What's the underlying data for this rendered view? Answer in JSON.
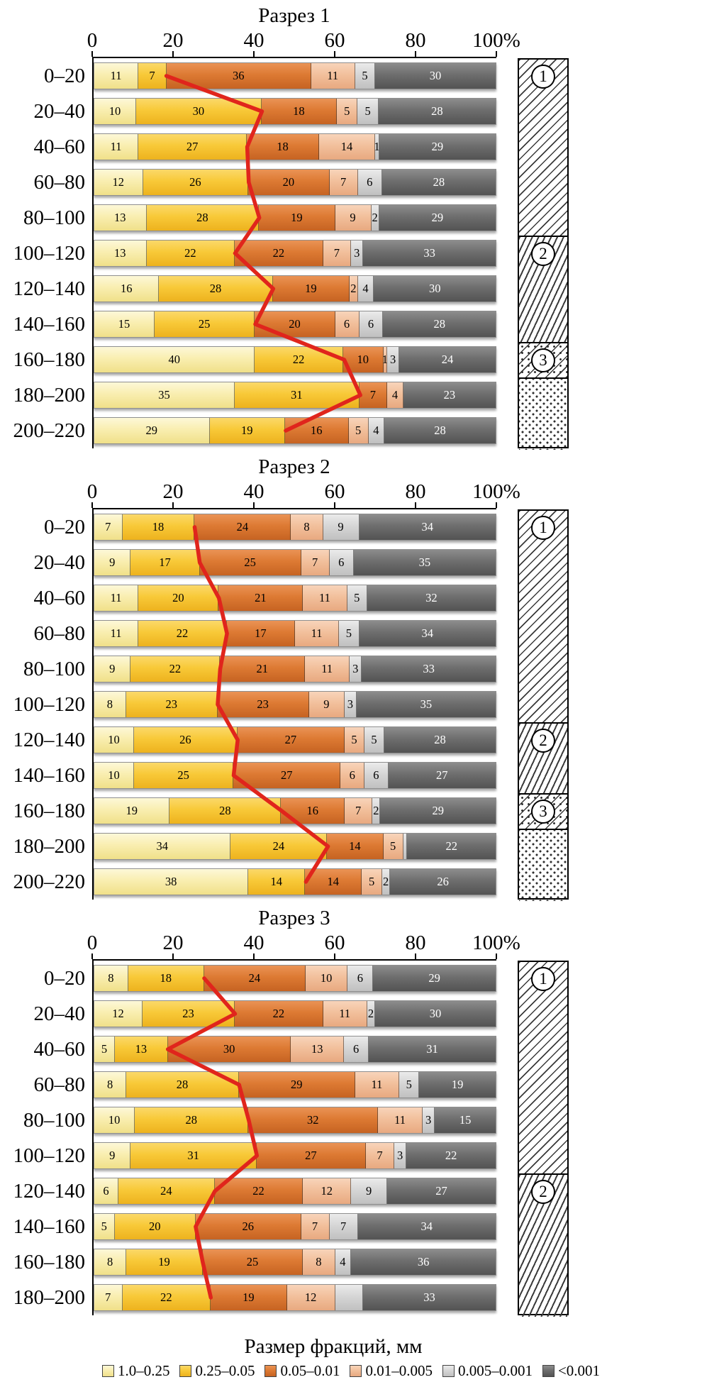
{
  "colors": {
    "fractions_base": [
      "#F9EEB0",
      "#F8C938",
      "#DD7A33",
      "#F2C09C",
      "#D6D6D6",
      "#6E6E6E"
    ],
    "line": "#E0251C"
  },
  "legend": {
    "title": "Размер фракций, мм",
    "items": [
      {
        "label": "1.0–0.25"
      },
      {
        "label": "0.25–0.05"
      },
      {
        "label": "0.05–0.01"
      },
      {
        "label": "0.01–0.005"
      },
      {
        "label": "0.005–0.001"
      },
      {
        "label": "<0.001"
      }
    ]
  },
  "chart_data": [
    {
      "type": "bar",
      "subtype": "horizontal-stacked",
      "title": "Разрез 1",
      "x_ticks": [
        "0",
        "20",
        "40",
        "60",
        "80",
        "100%"
      ],
      "x_range": [
        0,
        100
      ],
      "series_names": [
        "1.0–0.25",
        "0.25–0.05",
        "0.05–0.01",
        "0.01–0.005",
        "0.005–0.001",
        "<0.001"
      ],
      "rows": [
        {
          "depth": "0–20",
          "values": [
            11,
            7,
            36,
            11,
            5,
            30
          ],
          "labels": [
            "11",
            "7",
            "36",
            "11",
            "5",
            "30"
          ]
        },
        {
          "depth": "20–40",
          "values": [
            10,
            30,
            18,
            5,
            5,
            28
          ],
          "labels": [
            "10",
            "30",
            "18",
            "5",
            "5",
            "28"
          ]
        },
        {
          "depth": "40–60",
          "values": [
            11,
            27,
            18,
            14,
            1,
            29
          ],
          "labels": [
            "11",
            "27",
            "18",
            "14",
            "1",
            "29"
          ]
        },
        {
          "depth": "60–80",
          "values": [
            12,
            26,
            20,
            7,
            6,
            28
          ],
          "labels": [
            "12",
            "26",
            "20",
            "7",
            "6",
            "28"
          ]
        },
        {
          "depth": "80–100",
          "values": [
            13,
            28,
            19,
            9,
            2,
            29
          ],
          "labels": [
            "13",
            "28",
            "19",
            "9",
            "2",
            "29"
          ]
        },
        {
          "depth": "100–120",
          "values": [
            13,
            22,
            22,
            7,
            3,
            33
          ],
          "labels": [
            "13",
            "22",
            "22",
            "7",
            "3",
            "33"
          ]
        },
        {
          "depth": "120–140",
          "values": [
            16,
            28,
            19,
            2,
            4,
            30
          ],
          "labels": [
            "16",
            "28",
            "19",
            "2",
            "4",
            "30"
          ]
        },
        {
          "depth": "140–160",
          "values": [
            15,
            25,
            20,
            6,
            6,
            28
          ],
          "labels": [
            "15",
            "25",
            "20",
            "6",
            "6",
            "28"
          ]
        },
        {
          "depth": "160–180",
          "values": [
            40,
            22,
            10,
            1,
            3,
            24
          ],
          "labels": [
            "40",
            "22",
            "10",
            "1",
            "3",
            "24"
          ]
        },
        {
          "depth": "180–200",
          "values": [
            35,
            31,
            7,
            4,
            0,
            23
          ],
          "labels": [
            "35",
            "31",
            "7",
            "4",
            "",
            "23"
          ]
        },
        {
          "depth": "200–220",
          "values": [
            29,
            19,
            16,
            5,
            4,
            28
          ],
          "labels": [
            "29",
            "19",
            "16",
            "5",
            "4",
            "28"
          ]
        }
      ],
      "red_line_x": [
        18,
        40,
        38,
        38,
        41,
        35,
        44,
        40,
        62,
        66,
        48
      ],
      "strata": [
        {
          "label": "1",
          "pattern": "diag1",
          "rows": 5
        },
        {
          "label": "2",
          "pattern": "diag2",
          "rows": 3
        },
        {
          "label": "3",
          "pattern": "diag-dots",
          "rows": 1
        },
        {
          "label": "",
          "pattern": "dots",
          "rows": 2
        }
      ]
    },
    {
      "type": "bar",
      "subtype": "horizontal-stacked",
      "title": "Разрез 2",
      "x_ticks": [
        "0",
        "20",
        "40",
        "60",
        "80",
        "100%"
      ],
      "x_range": [
        0,
        100
      ],
      "series_names": [
        "1.0–0.25",
        "0.25–0.05",
        "0.05–0.01",
        "0.01–0.005",
        "0.005–0.001",
        "<0.001"
      ],
      "rows": [
        {
          "depth": "0–20",
          "values": [
            7,
            18,
            24,
            8,
            9,
            34
          ],
          "labels": [
            "7",
            "18",
            "24",
            "8",
            "9",
            "34"
          ]
        },
        {
          "depth": "20–40",
          "values": [
            9,
            17,
            25,
            7,
            6,
            35
          ],
          "labels": [
            "9",
            "17",
            "25",
            "7",
            "6",
            "35"
          ]
        },
        {
          "depth": "40–60",
          "values": [
            11,
            20,
            21,
            11,
            5,
            32
          ],
          "labels": [
            "11",
            "20",
            "21",
            "11",
            "5",
            "32"
          ]
        },
        {
          "depth": "60–80",
          "values": [
            11,
            22,
            17,
            11,
            5,
            34
          ],
          "labels": [
            "11",
            "22",
            "17",
            "11",
            "5",
            "34"
          ]
        },
        {
          "depth": "80–100",
          "values": [
            9,
            22,
            21,
            11,
            3,
            33
          ],
          "labels": [
            "9",
            "22",
            "21",
            "11",
            "3",
            "33"
          ]
        },
        {
          "depth": "100–120",
          "values": [
            8,
            23,
            23,
            9,
            3,
            35
          ],
          "labels": [
            "8",
            "23",
            "23",
            "9",
            "3",
            "35"
          ]
        },
        {
          "depth": "120–140",
          "values": [
            10,
            26,
            27,
            5,
            5,
            28
          ],
          "labels": [
            "10",
            "26",
            "27",
            "5",
            "5",
            "28"
          ]
        },
        {
          "depth": "140–160",
          "values": [
            10,
            25,
            27,
            6,
            6,
            27
          ],
          "labels": [
            "10",
            "25",
            "27",
            "6",
            "6",
            "27"
          ]
        },
        {
          "depth": "160–180",
          "values": [
            19,
            28,
            16,
            7,
            2,
            29
          ],
          "labels": [
            "19",
            "28",
            "16",
            "7",
            "2",
            "29"
          ]
        },
        {
          "depth": "180–200",
          "values": [
            34,
            24,
            14,
            5,
            1,
            22
          ],
          "labels": [
            "34",
            "24",
            "14",
            "5",
            "",
            "22"
          ]
        },
        {
          "depth": "200–220",
          "values": [
            38,
            14,
            14,
            5,
            2,
            26
          ],
          "labels": [
            "38",
            "14",
            "14",
            "5",
            "2",
            "26"
          ]
        }
      ],
      "red_line_x": [
        25,
        26,
        31,
        33,
        31,
        31,
        36,
        35,
        47,
        58,
        52
      ],
      "strata": [
        {
          "label": "1",
          "pattern": "diag1",
          "rows": 6
        },
        {
          "label": "2",
          "pattern": "diag2",
          "rows": 2
        },
        {
          "label": "3",
          "pattern": "diag-dots",
          "rows": 1
        },
        {
          "label": "",
          "pattern": "dots",
          "rows": 2
        }
      ]
    },
    {
      "type": "bar",
      "subtype": "horizontal-stacked",
      "title": "Разрез 3",
      "x_ticks": [
        "0",
        "20",
        "40",
        "60",
        "80",
        "100%"
      ],
      "x_range": [
        0,
        100
      ],
      "series_names": [
        "1.0–0.25",
        "0.25–0.05",
        "0.05–0.01",
        "0.01–0.005",
        "0.005–0.001",
        "<0.001"
      ],
      "rows": [
        {
          "depth": "0–20",
          "values": [
            8,
            18,
            24,
            10,
            6,
            29
          ],
          "labels": [
            "8",
            "18",
            "24",
            "10",
            "6",
            "29"
          ]
        },
        {
          "depth": "20–40",
          "values": [
            12,
            23,
            22,
            11,
            2,
            30
          ],
          "labels": [
            "12",
            "23",
            "22",
            "11",
            "2",
            "30"
          ]
        },
        {
          "depth": "40–60",
          "values": [
            5,
            13,
            30,
            13,
            6,
            31
          ],
          "labels": [
            "5",
            "13",
            "30",
            "13",
            "6",
            "31"
          ]
        },
        {
          "depth": "60–80",
          "values": [
            8,
            28,
            29,
            11,
            5,
            19
          ],
          "labels": [
            "8",
            "28",
            "29",
            "11",
            "5",
            "19"
          ]
        },
        {
          "depth": "80–100",
          "values": [
            10,
            28,
            32,
            11,
            3,
            15
          ],
          "labels": [
            "10",
            "28",
            "32",
            "11",
            "3",
            "15"
          ]
        },
        {
          "depth": "100–120",
          "values": [
            9,
            31,
            27,
            7,
            3,
            22
          ],
          "labels": [
            "9",
            "31",
            "27",
            "7",
            "3",
            "22"
          ]
        },
        {
          "depth": "120–140",
          "values": [
            6,
            24,
            22,
            12,
            9,
            27
          ],
          "labels": [
            "6",
            "24",
            "22",
            "12",
            "9",
            "27"
          ]
        },
        {
          "depth": "140–160",
          "values": [
            5,
            20,
            26,
            7,
            7,
            34
          ],
          "labels": [
            "5",
            "20",
            "26",
            "7",
            "7",
            "34"
          ]
        },
        {
          "depth": "160–180",
          "values": [
            8,
            19,
            25,
            8,
            4,
            36
          ],
          "labels": [
            "8",
            "19",
            "25",
            "8",
            "4",
            "36"
          ]
        },
        {
          "depth": "180–200",
          "values": [
            7,
            22,
            19,
            12,
            7,
            33
          ],
          "labels": [
            "7",
            "22",
            "19",
            "12",
            "",
            "33"
          ]
        }
      ],
      "red_line_x": [
        26,
        35,
        18,
        36,
        38,
        40,
        30,
        25,
        27,
        29
      ],
      "strata": [
        {
          "label": "1",
          "pattern": "diag1",
          "rows": 6
        },
        {
          "label": "2",
          "pattern": "diag2",
          "rows": 4
        }
      ]
    }
  ]
}
